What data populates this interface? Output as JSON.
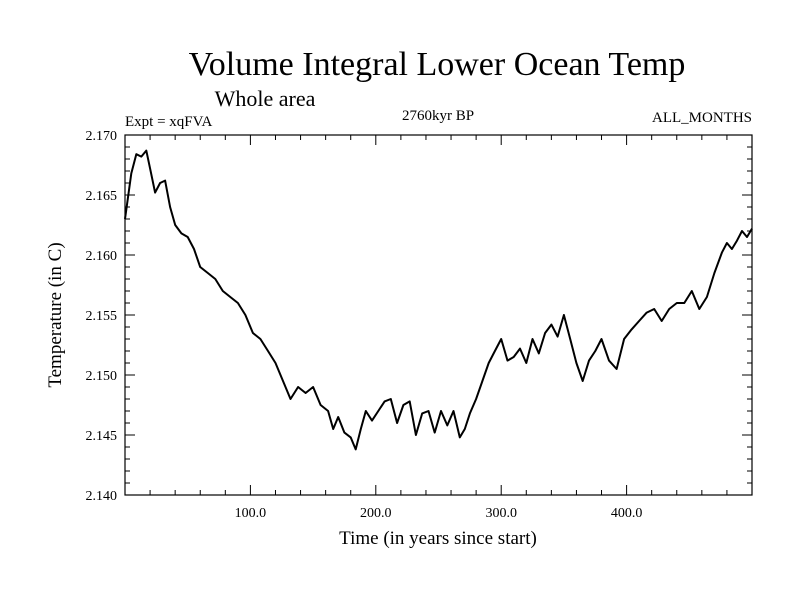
{
  "chart_data": {
    "type": "line",
    "title": "Volume Integral Lower Ocean Temp",
    "subtitle": "Whole area",
    "expt_label": "Expt = xqFVA",
    "period_label": "2760kyr BP",
    "months_label": "ALL_MONTHS",
    "xlabel": "Time (in years since start)",
    "ylabel": "Temperature (in C)",
    "xlim": [
      0,
      500
    ],
    "ylim": [
      2.14,
      2.17
    ],
    "x_ticks": [
      100,
      200,
      300,
      400
    ],
    "x_tick_labels": [
      "100.0",
      "200.0",
      "300.0",
      "400.0"
    ],
    "y_ticks": [
      2.14,
      2.145,
      2.15,
      2.155,
      2.16,
      2.165,
      2.17
    ],
    "y_tick_labels": [
      "2.140",
      "2.145",
      "2.150",
      "2.155",
      "2.160",
      "2.165",
      "2.170"
    ],
    "series": [
      {
        "name": "Volume Integral Lower Ocean Temp",
        "x": [
          0,
          5,
          9,
          13,
          17,
          20,
          24,
          28,
          32,
          36,
          40,
          45,
          50,
          55,
          60,
          66,
          72,
          78,
          84,
          90,
          96,
          102,
          108,
          114,
          120,
          126,
          132,
          138,
          144,
          150,
          156,
          162,
          166,
          170,
          175,
          180,
          184,
          188,
          192,
          197,
          202,
          207,
          212,
          217,
          222,
          227,
          232,
          237,
          242,
          247,
          252,
          257,
          262,
          267,
          271,
          275,
          280,
          285,
          290,
          295,
          300,
          305,
          310,
          315,
          320,
          325,
          330,
          335,
          340,
          345,
          350,
          355,
          360,
          365,
          370,
          375,
          380,
          386,
          392,
          398,
          404,
          410,
          416,
          422,
          428,
          434,
          440,
          446,
          452,
          458,
          464,
          470,
          476,
          480,
          484,
          488,
          492,
          496,
          500
        ],
        "values": [
          2.163,
          2.1668,
          2.1684,
          2.1682,
          2.1687,
          2.1672,
          2.1652,
          2.166,
          2.1662,
          2.164,
          2.1625,
          2.1618,
          2.1615,
          2.1605,
          2.159,
          2.1585,
          2.158,
          2.157,
          2.1565,
          2.156,
          2.155,
          2.1535,
          2.153,
          2.152,
          2.151,
          2.1495,
          2.148,
          2.149,
          2.1485,
          2.149,
          2.1475,
          2.147,
          2.1455,
          2.1465,
          2.1452,
          2.1448,
          2.1438,
          2.1455,
          2.147,
          2.1462,
          2.147,
          2.1478,
          2.148,
          2.146,
          2.1475,
          2.1478,
          2.145,
          2.1468,
          2.147,
          2.1452,
          2.147,
          2.1458,
          2.147,
          2.1448,
          2.1455,
          2.1468,
          2.148,
          2.1495,
          2.151,
          2.152,
          2.153,
          2.1512,
          2.1515,
          2.1522,
          2.151,
          2.153,
          2.1518,
          2.1535,
          2.1542,
          2.1532,
          2.155,
          2.153,
          2.151,
          2.1495,
          2.1512,
          2.152,
          2.153,
          2.1512,
          2.1505,
          2.153,
          2.1538,
          2.1545,
          2.1552,
          2.1555,
          2.1545,
          2.1555,
          2.156,
          2.156,
          2.157,
          2.1555,
          2.1565,
          2.1585,
          2.1602,
          2.161,
          2.1605,
          2.1612,
          2.162,
          2.1615,
          2.1622
        ]
      }
    ]
  }
}
